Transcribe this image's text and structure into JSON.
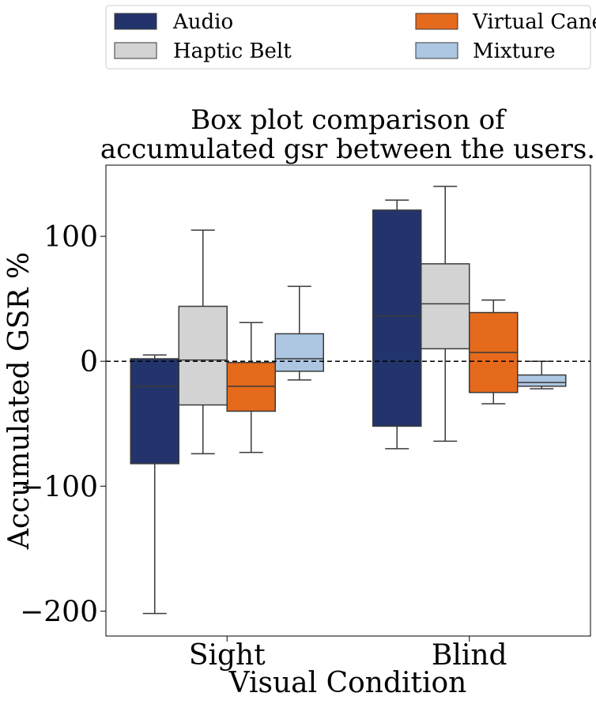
{
  "chart_data": {
    "type": "box",
    "title_lines": [
      "Box plot comparison of",
      "accumulated gsr between the users."
    ],
    "xlabel": "Visual Condition",
    "ylabel": "Accumulated GSR %",
    "categories": [
      "Sight",
      "Blind"
    ],
    "ylim": [
      -220,
      157
    ],
    "yticks": [
      {
        "value": 100,
        "label": "100"
      },
      {
        "value": 0,
        "label": "0"
      },
      {
        "value": -100,
        "label": "−100"
      },
      {
        "value": -200,
        "label": "−200"
      }
    ],
    "reference_line": {
      "value": 0,
      "style": "dashed"
    },
    "legend_position": "top",
    "series": [
      {
        "name": "Audio",
        "color": "#22346b",
        "boxes": [
          {
            "whisker_low": -202,
            "q1": -82,
            "median": -20,
            "q3": 2,
            "whisker_high": 5
          },
          {
            "whisker_low": -70,
            "q1": -52,
            "median": 36,
            "q3": 121,
            "whisker_high": 129
          }
        ]
      },
      {
        "name": "Haptic Belt",
        "color": "#d3d3d3",
        "boxes": [
          {
            "whisker_low": -74,
            "q1": -35,
            "median": 1,
            "q3": 44,
            "whisker_high": 105
          },
          {
            "whisker_low": -64,
            "q1": 10,
            "median": 46,
            "q3": 78,
            "whisker_high": 140
          }
        ]
      },
      {
        "name": "Virtual Cane",
        "color": "#e56a1c",
        "boxes": [
          {
            "whisker_low": -73,
            "q1": -40,
            "median": -20,
            "q3": -1,
            "whisker_high": 31
          },
          {
            "whisker_low": -34,
            "q1": -25,
            "median": 7,
            "q3": 39,
            "whisker_high": 49
          }
        ]
      },
      {
        "name": "Mixture",
        "color": "#adc6e2",
        "boxes": [
          {
            "whisker_low": -15,
            "q1": -8,
            "median": 2,
            "q3": 22,
            "whisker_high": 60
          },
          {
            "whisker_low": -22,
            "q1": -20,
            "median": -17,
            "q3": -11,
            "whisker_high": 0
          }
        ]
      }
    ]
  }
}
